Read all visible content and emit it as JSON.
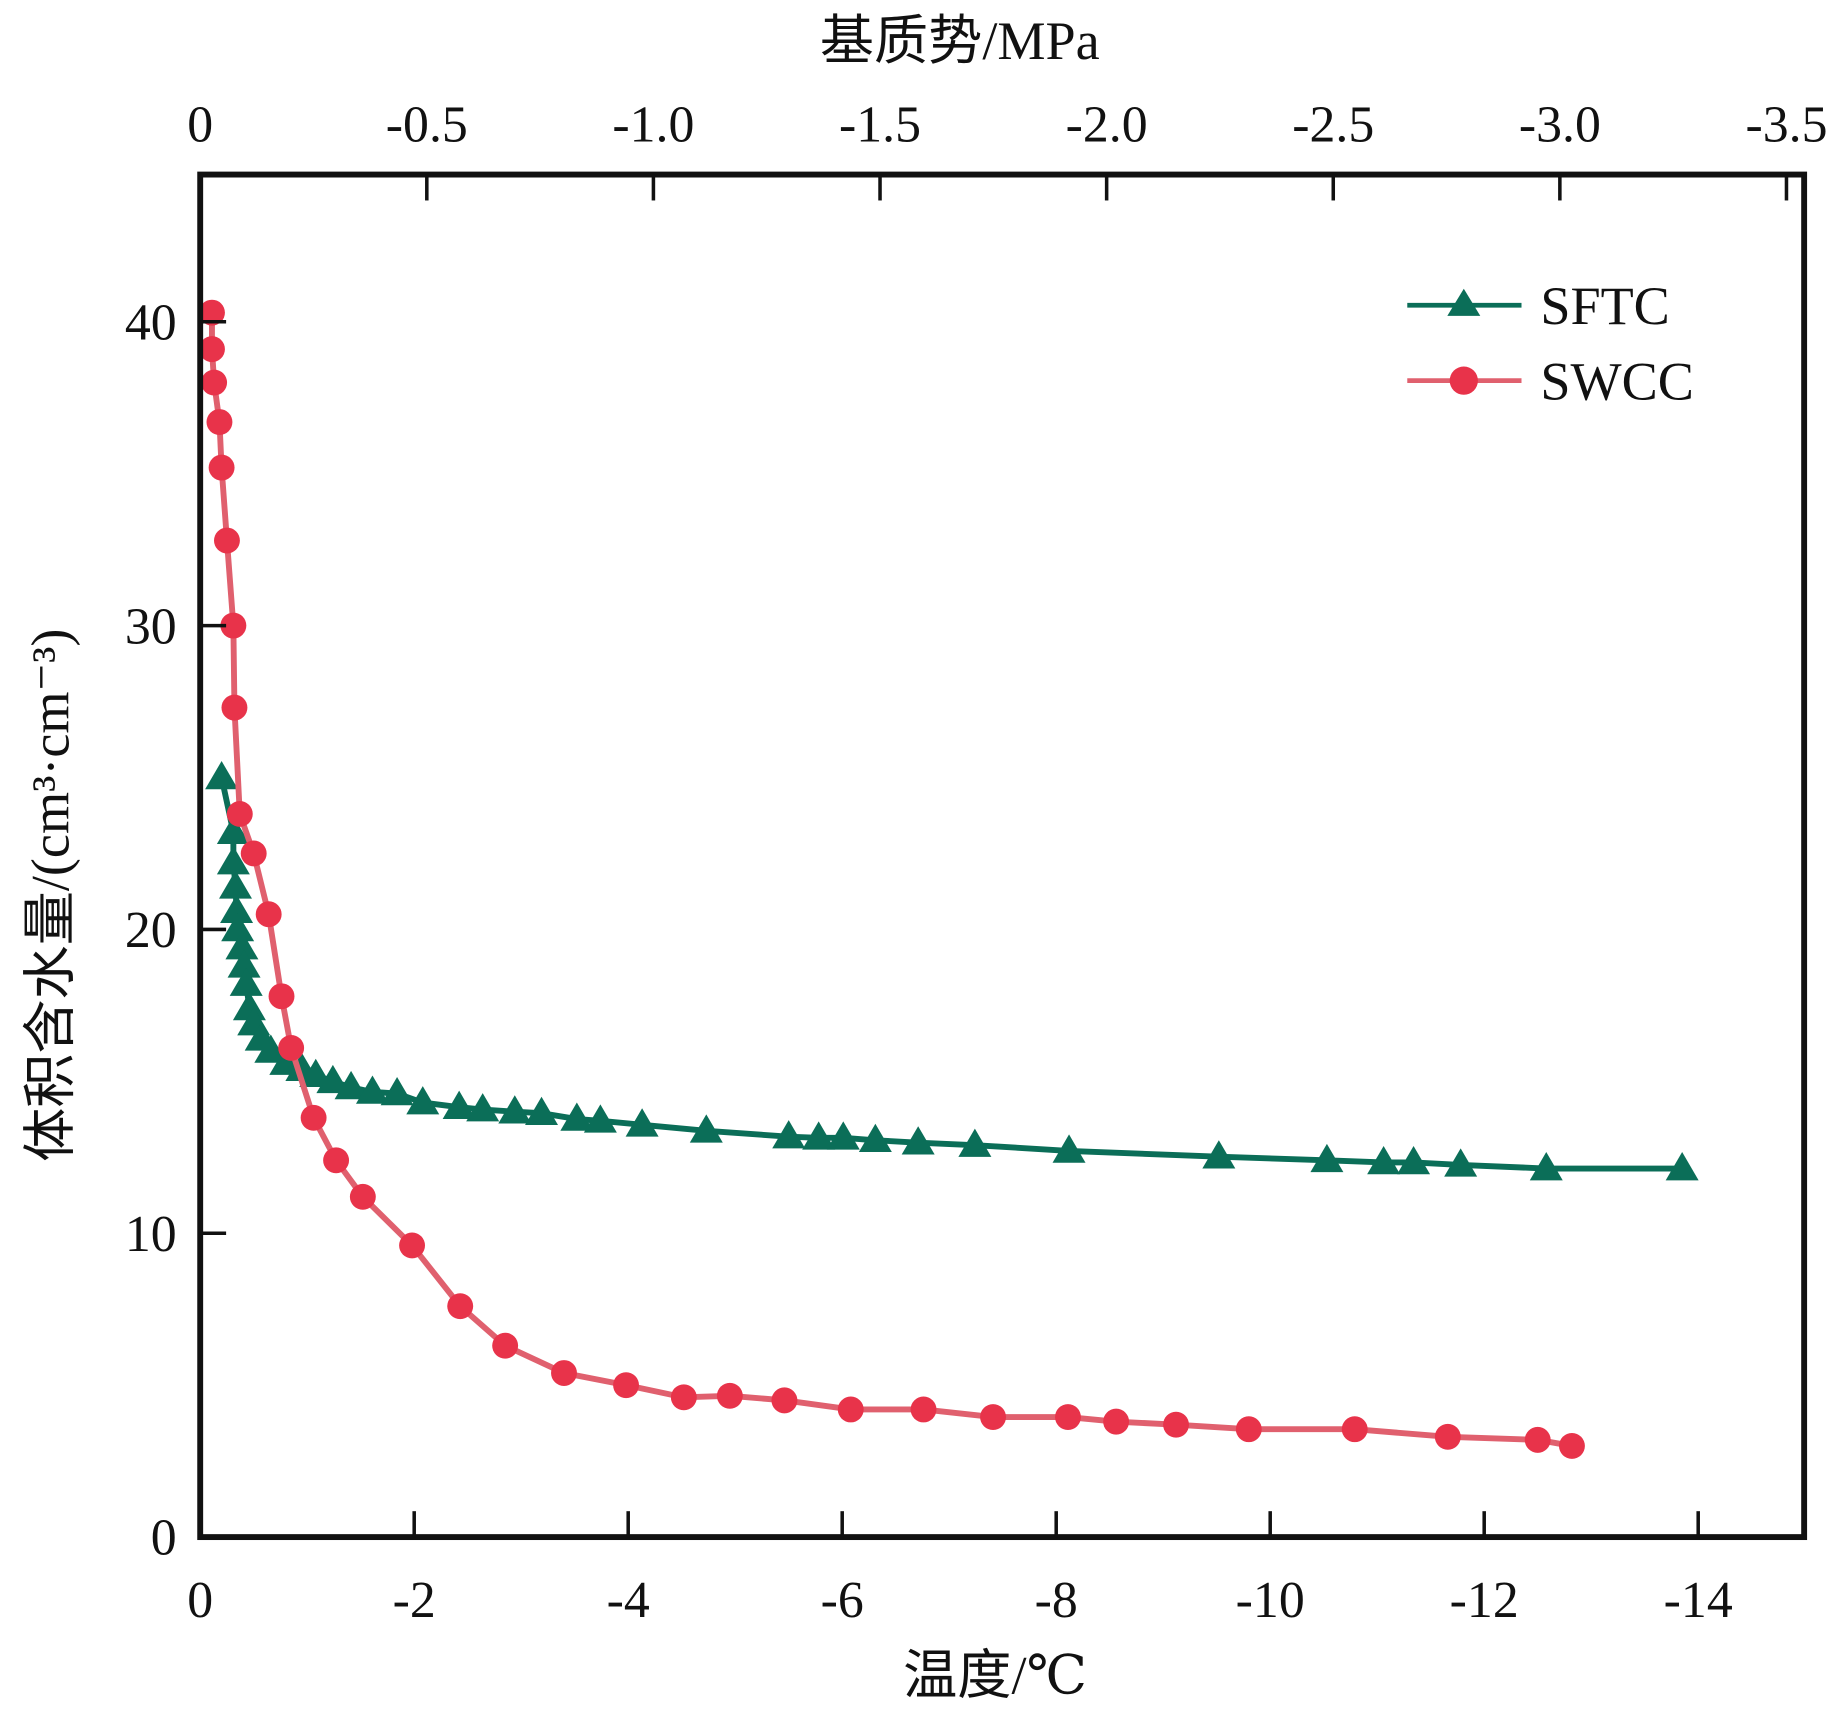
{
  "chart_data": {
    "type": "line",
    "title": "",
    "xlabel": "温度/℃",
    "x2label": "基质势/MPa",
    "ylabel": "体积含水量/(cm³·cm⁻³)",
    "xlim": [
      0,
      -15
    ],
    "x2lim": [
      0,
      -3.5
    ],
    "ylim": [
      0,
      45
    ],
    "xticks": [
      "0",
      "-2",
      "-4",
      "-6",
      "-8",
      "-10",
      "-12",
      "-14"
    ],
    "xtick_values": [
      0,
      -2,
      -4,
      -6,
      -8,
      -10,
      -12,
      -14
    ],
    "x2ticks": [
      "0",
      "-0.5",
      "-1.0",
      "-1.5",
      "-2.0",
      "-2.5",
      "-3.0",
      "-3.5"
    ],
    "x2tick_values": [
      0,
      -0.5,
      -1.0,
      -1.5,
      -2.0,
      -2.5,
      -3.0,
      -3.5
    ],
    "yticks": [
      "0",
      "10",
      "20",
      "30",
      "40"
    ],
    "ytick_values": [
      0,
      10,
      20,
      30,
      40
    ],
    "grid": false,
    "legend_position": "top-right",
    "colors": {
      "SFTC": "#0b6e58",
      "SWCC": "#e8334a",
      "SWCC_line": "#e0606e"
    },
    "series": [
      {
        "name": "SFTC",
        "marker": "triangle",
        "x": [
          -0.2,
          -0.31,
          -0.31,
          -0.33,
          -0.34,
          -0.35,
          -0.39,
          -0.41,
          -0.43,
          -0.46,
          -0.5,
          -0.57,
          -0.66,
          -0.8,
          -0.95,
          -1.08,
          -1.24,
          -1.41,
          -1.61,
          -1.84,
          -2.08,
          -2.42,
          -2.64,
          -2.94,
          -3.19,
          -3.52,
          -3.74,
          -4.13,
          -4.73,
          -5.5,
          -5.78,
          -6.01,
          -6.31,
          -6.71,
          -7.24,
          -8.12,
          -9.52,
          -10.53,
          -11.06,
          -11.34,
          -11.78,
          -12.58,
          -13.85
        ],
        "y": [
          25.0,
          23.2,
          22.2,
          21.4,
          20.6,
          20.0,
          19.4,
          18.8,
          18.2,
          17.4,
          16.9,
          16.4,
          16.0,
          15.6,
          15.4,
          15.2,
          15.0,
          14.8,
          14.65,
          14.6,
          14.3,
          14.15,
          14.07,
          14.0,
          13.95,
          13.76,
          13.7,
          13.57,
          13.37,
          13.18,
          13.14,
          13.14,
          13.06,
          12.98,
          12.9,
          12.71,
          12.52,
          12.4,
          12.33,
          12.33,
          12.25,
          12.13,
          12.13
        ]
      },
      {
        "name": "SWCC",
        "marker": "circle",
        "x": [
          -0.11,
          -0.11,
          -0.13,
          -0.18,
          -0.2,
          -0.25,
          -0.31,
          -0.32,
          -0.37,
          -0.5,
          -0.64,
          -0.76,
          -0.85,
          -1.06,
          -1.27,
          -1.52,
          -1.98,
          -2.43,
          -2.85,
          -3.4,
          -3.98,
          -4.52,
          -4.95,
          -5.46,
          -6.08,
          -6.76,
          -7.41,
          -8.11,
          -8.56,
          -9.12,
          -9.8,
          -10.79,
          -11.66,
          -12.5,
          -12.82
        ],
        "y": [
          40.3,
          39.1,
          38.0,
          36.7,
          35.2,
          32.8,
          30.0,
          27.3,
          23.8,
          22.5,
          20.5,
          17.8,
          16.1,
          13.8,
          12.4,
          11.2,
          9.6,
          7.6,
          6.3,
          5.4,
          5.0,
          4.6,
          4.65,
          4.5,
          4.2,
          4.2,
          3.95,
          3.95,
          3.8,
          3.7,
          3.55,
          3.55,
          3.3,
          3.2,
          3.0
        ]
      }
    ]
  }
}
